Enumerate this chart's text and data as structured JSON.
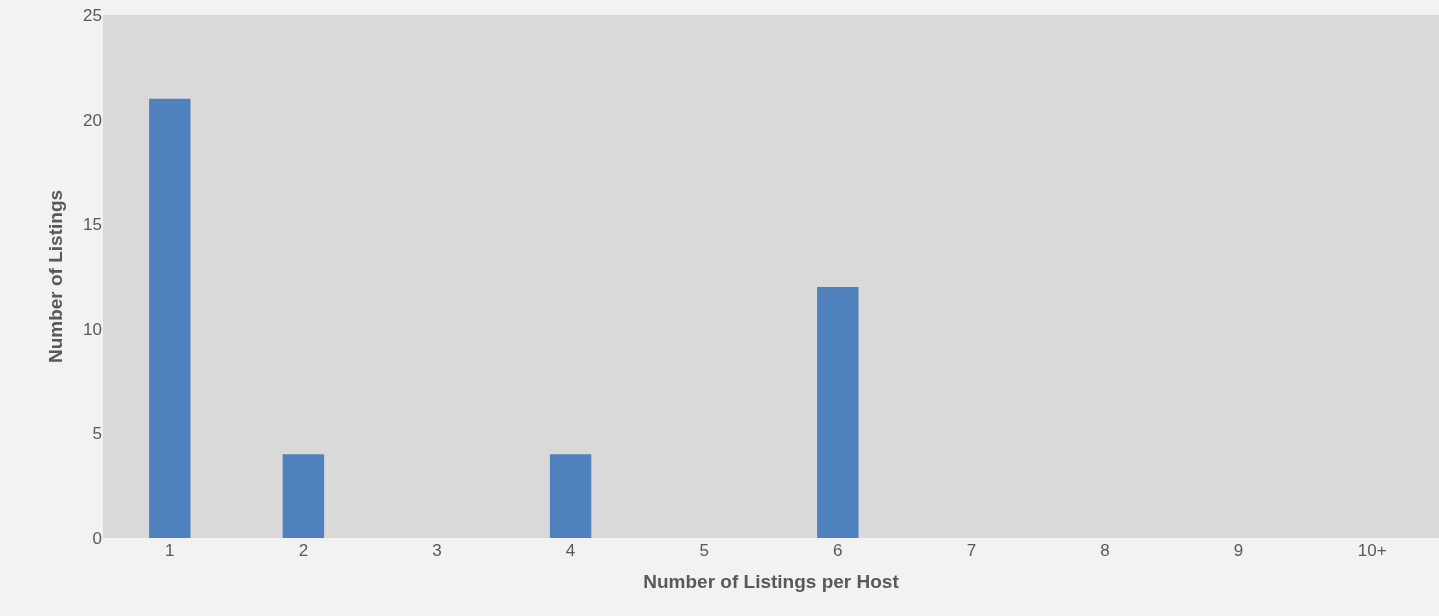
{
  "chart_data": {
    "type": "bar",
    "xlabel": "Number of Listings per Host",
    "ylabel": "Number of Listings",
    "categories": [
      "1",
      "2",
      "3",
      "4",
      "5",
      "6",
      "7",
      "8",
      "9",
      "10+"
    ],
    "values": [
      21,
      4,
      0,
      4,
      0,
      12,
      0,
      0,
      0,
      0
    ],
    "color": "#4f81bd",
    "ylim": [
      0,
      25
    ],
    "yticks": [
      0,
      5,
      10,
      15,
      20,
      25
    ],
    "grid": false
  }
}
